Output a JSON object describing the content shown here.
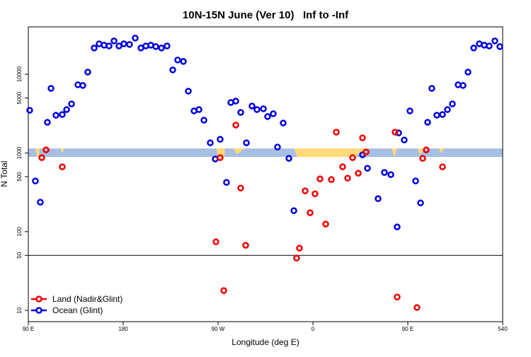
{
  "chart_data": {
    "type": "scatter",
    "title": "10N-15N June (Ver 10)   Inf to -Inf",
    "x_label": "Longitude (deg E)",
    "y_label": "N Total",
    "xlim": [
      90,
      540
    ],
    "xticks": [
      {
        "value": 90,
        "label": "90 E"
      },
      180,
      {
        "value": 270,
        "label": "90 W"
      },
      {
        "value": 360,
        "label": "0"
      },
      {
        "value": 450,
        "label": "90 E"
      },
      540
    ],
    "ylim": [
      7.2,
      40000
    ],
    "ylog": true,
    "yticks": [
      10,
      50,
      100,
      500,
      1000,
      5000,
      10000
    ],
    "hline": 50,
    "legend": "bottomleft",
    "series": [
      {
        "name": "Ocean (Glint)",
        "color": "#0000dd",
        "x": [
          91.3,
          96.7,
          101.4,
          108.1,
          111.5,
          116.2,
          122.2,
          126.3,
          131,
          137,
          141.7,
          146.4,
          152.5,
          157.2,
          161.9,
          166.6,
          171.3,
          176,
          180.7,
          186,
          191.4,
          196.8,
          201.5,
          206.2,
          210.9,
          216.3,
          221.6,
          227,
          231.7,
          237.1,
          241.8,
          247.2,
          251.9,
          256.6,
          262.6,
          267.3,
          272,
          278,
          282.1,
          286.8,
          291.5,
          296.9,
          302.2,
          306.9,
          313,
          317,
          322.4,
          326.4,
          331.8,
          337.2,
          341.9,
          407,
          411.7,
          421.8,
          427.8,
          433.9,
          439.9,
          441.3,
          446.6,
          452,
          457.4,
          462.1,
          468.8,
          472.8,
          477.5,
          482.9,
          487.6,
          492.3,
          497.7,
          502.4,
          507.1,
          512.5,
          517.8,
          522.5,
          527.2,
          532.6,
          537.3
        ],
        "values": [
          3490,
          441,
          237,
          2455,
          6620,
          3020,
          3083,
          3560,
          4200,
          7350,
          7200,
          10660,
          21550,
          24380,
          23400,
          22900,
          26500,
          22900,
          24380,
          23900,
          28800,
          21550,
          22900,
          23400,
          22450,
          21550,
          22900,
          11350,
          15170,
          14550,
          6100,
          3420,
          3560,
          2610,
          1347,
          838,
          1494,
          423,
          4380,
          4560,
          3280,
          1347,
          3950,
          3560,
          3640,
          2900,
          3150,
          1190,
          2400,
          855,
          185,
          948,
          640,
          263,
          565,
          531,
          115,
          1800,
          1463,
          3420,
          441,
          232,
          2455,
          6620,
          3020,
          3083,
          3560,
          4200,
          7350,
          7200,
          10660,
          21550,
          24380,
          23400,
          22900,
          26500,
          22450
        ]
      },
      {
        "name": "Land (Nadir&Glint)",
        "color": "#ee0000",
        "x": [
          102.8,
          106.8,
          122.2,
          268,
          272,
          275.4,
          286.8,
          291.5,
          296.2,
          344.5,
          347.2,
          352.6,
          357.3,
          362,
          366.7,
          372.1,
          377.5,
          382.2,
          388.2,
          392.9,
          397.6,
          403,
          407,
          410.4,
          437.9,
          439.9,
          458.7,
          464.1,
          467.5,
          482.9
        ],
        "values": [
          873,
          1096,
          667,
          74.4,
          873,
          17.9,
          2260,
          358,
          67.1,
          46.2,
          61.8,
          330,
          174,
          303,
          469,
          125,
          459,
          1837,
          667,
          479,
          873,
          553,
          1556,
          1030,
          1837,
          14.8,
          10.9,
          855,
          1096,
          667
        ]
      }
    ]
  }
}
